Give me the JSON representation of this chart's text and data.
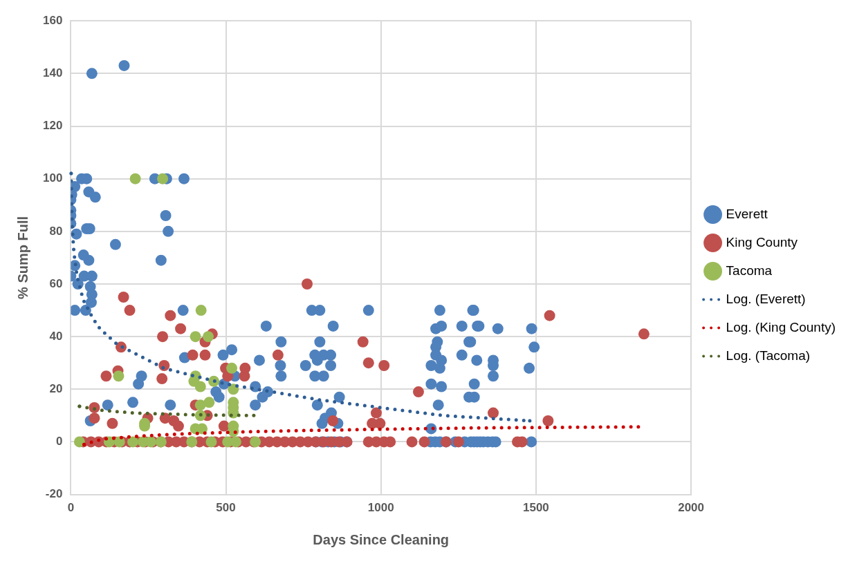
{
  "chart_data": {
    "type": "scatter",
    "xlabel": "Days Since Cleaning",
    "ylabel": "% Sump Full",
    "xlim": [
      0,
      2000
    ],
    "xticks": [
      0,
      500,
      1000,
      1500,
      2000
    ],
    "ylim": [
      -20,
      160
    ],
    "yticks": [
      -20,
      0,
      20,
      40,
      60,
      80,
      100,
      120,
      140,
      160
    ],
    "grid": true,
    "legend": "right",
    "series": [
      {
        "name": "Everett",
        "marker": "circle",
        "color": "#4f81bd",
        "x": [
          68,
          172,
          35,
          51,
          271,
          309,
          365,
          3,
          13,
          58,
          0,
          0,
          0,
          79,
          0,
          18,
          51,
          61,
          306,
          314,
          144,
          291,
          58,
          13,
          0,
          41,
          23,
          43,
          68,
          63,
          68,
          66,
          13,
          48,
          362,
          630,
          678,
          676,
          678,
          519,
          491,
          367,
          228,
          218,
          529,
          494,
          468,
          478,
          608,
          595,
          618,
          635,
          595,
          119,
          200,
          321,
          63,
          1190,
          1296,
          960,
          777,
          803,
          846,
          1177,
          1195,
          1261,
          1311,
          803,
          1182,
          1177,
          1284,
          787,
          815,
          838,
          795,
          1177,
          1195,
          1261,
          1309,
          757,
          838,
          1162,
          1190,
          787,
          815,
          1162,
          1195,
          1301,
          1301,
          1185,
          866,
          795,
          840,
          820,
          810,
          861,
          1162,
          1299,
          1316,
          1377,
          1486,
          1289,
          1494,
          1362,
          1362,
          1362,
          1478,
          1284,
          790,
          810,
          830,
          850,
          870,
          890,
          1160,
          1175,
          1190,
          1210,
          1240,
          1270,
          1290,
          1300,
          1310,
          1320,
          1330,
          1345,
          1360,
          1370,
          1485
        ],
        "values": [
          140,
          143,
          100,
          100,
          100,
          100,
          100,
          94,
          97,
          95,
          92,
          88,
          86,
          93,
          83,
          79,
          81,
          81,
          86,
          80,
          75,
          69,
          69,
          67,
          63,
          71,
          60,
          63,
          63,
          59,
          56,
          53,
          50,
          50,
          50,
          44,
          38,
          29,
          25,
          35,
          33,
          32,
          25,
          22,
          25,
          22,
          19,
          17,
          31,
          21,
          17,
          19,
          14,
          14,
          15,
          14,
          8,
          50,
          50,
          50,
          50,
          50,
          44,
          43,
          44,
          44,
          44,
          38,
          38,
          36,
          38,
          33,
          33,
          33,
          31,
          33,
          31,
          33,
          31,
          29,
          29,
          29,
          28,
          25,
          25,
          22,
          21,
          22,
          17,
          14,
          17,
          14,
          11,
          9,
          7,
          7,
          5,
          50,
          44,
          43,
          43,
          38,
          36,
          31,
          29,
          25,
          28,
          17,
          0,
          0,
          0,
          0,
          0,
          0,
          0,
          0,
          0,
          0,
          0,
          0,
          0,
          0,
          0,
          0,
          0,
          0,
          0,
          0,
          0
        ]
      },
      {
        "name": "King County",
        "marker": "circle",
        "color": "#c0504d",
        "x": [
          170,
          190,
          321,
          354,
          296,
          456,
          433,
          393,
          433,
          162,
          152,
          114,
          301,
          294,
          499,
          506,
          562,
          560,
          76,
          76,
          134,
          248,
          304,
          332,
          347,
          402,
          440,
          494,
          762,
          668,
          942,
          960,
          1010,
          1121,
          845,
          985,
          972,
          997,
          1544,
          1848,
          1362,
          1539,
          40,
          65,
          90,
          115,
          140,
          165,
          190,
          215,
          240,
          265,
          290,
          315,
          340,
          365,
          390,
          415,
          440,
          465,
          490,
          515,
          540,
          565,
          590,
          615,
          640,
          665,
          690,
          715,
          740,
          765,
          790,
          815,
          840,
          865,
          890,
          960,
          985,
          1010,
          1030,
          1100,
          1140,
          1210,
          1250,
          1440,
          1455
        ],
        "values": [
          55,
          50,
          48,
          43,
          40,
          41,
          38,
          33,
          33,
          36,
          27,
          25,
          29,
          24,
          28,
          25,
          28,
          25,
          13,
          9,
          7,
          9,
          9,
          8,
          6,
          14,
          10,
          6,
          60,
          33,
          38,
          30,
          29,
          19,
          8,
          11,
          7,
          7,
          48,
          41,
          11,
          8,
          0,
          0,
          0,
          0,
          0,
          0,
          0,
          0,
          0,
          0,
          0,
          0,
          0,
          0,
          0,
          0,
          0,
          0,
          0,
          0,
          0,
          0,
          0,
          0,
          0,
          0,
          0,
          0,
          0,
          0,
          0,
          0,
          0,
          0,
          0,
          0,
          0,
          0,
          0,
          0,
          0,
          0,
          0,
          0,
          0
        ]
      },
      {
        "name": "Tacoma",
        "marker": "circle",
        "color": "#9bbb59",
        "x": [
          208,
          296,
          420,
          402,
          443,
          519,
          154,
          402,
          397,
          418,
          461,
          524,
          418,
          446,
          524,
          524,
          524,
          418,
          238,
          238,
          402,
          423,
          524,
          524,
          28,
          124,
          157,
          200,
          233,
          258,
          291,
          390,
          453,
          506,
          532,
          595
        ],
        "values": [
          100,
          100,
          50,
          40,
          40,
          28,
          25,
          25,
          23,
          21,
          23,
          20,
          14,
          15,
          15,
          13,
          11,
          10,
          7,
          6,
          5,
          5,
          6,
          4,
          0,
          0,
          0,
          0,
          0,
          0,
          0,
          0,
          0,
          0,
          0,
          0
        ]
      },
      {
        "name": "Log. (Everett)",
        "type": "line",
        "marker": "none",
        "line_style": "dotted",
        "color": "#2e5d94",
        "x": [
          1,
          2,
          3,
          5,
          10,
          20,
          40,
          71,
          94,
          150,
          200,
          300,
          400,
          500,
          600,
          800,
          1000,
          1200,
          1480
        ],
        "values": [
          102,
          94,
          88,
          81,
          72,
          63,
          54,
          47,
          43,
          37,
          34,
          28,
          25,
          22,
          20,
          16,
          13,
          10,
          8
        ]
      },
      {
        "name": "Log. (King County)",
        "type": "line",
        "marker": "none",
        "line_style": "dotted",
        "color": "#cc0000",
        "x": [
          43,
          70,
          100,
          150,
          200,
          300,
          400,
          500,
          700,
          1000,
          1300,
          1830
        ],
        "values": [
          -1,
          0,
          1,
          1.5,
          2,
          2.7,
          3.2,
          3.6,
          4.2,
          4.8,
          5.3,
          5.7
        ]
      },
      {
        "name": "Log. (Tacoma)",
        "type": "line",
        "marker": "none",
        "line_style": "dotted",
        "color": "#4f6228",
        "x": [
          28,
          100,
          200,
          300,
          400,
          590
        ],
        "values": [
          13.5,
          12,
          11,
          10.6,
          10.3,
          10
        ]
      }
    ]
  }
}
